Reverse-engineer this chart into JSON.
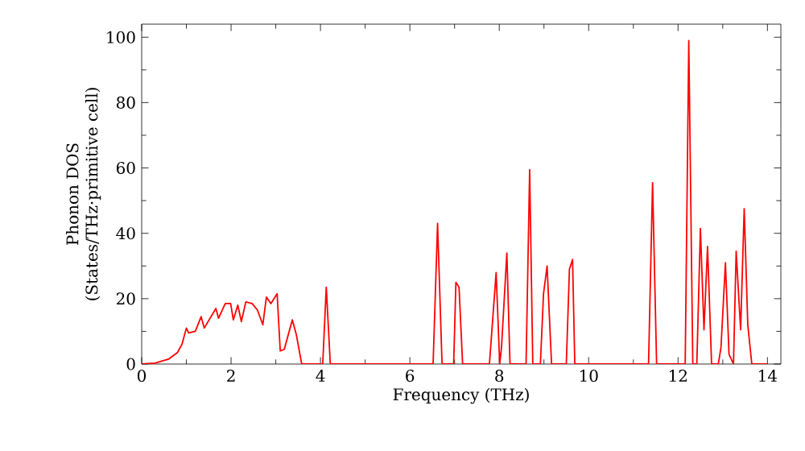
{
  "chart_data": {
    "type": "line",
    "xlabel": "Frequency (THz)",
    "ylabel": "Phonon DOS\n(States/THz·primitive cell)",
    "xlim": [
      0,
      14.3
    ],
    "ylim": [
      0,
      104
    ],
    "xticks": [
      0,
      2,
      4,
      6,
      8,
      10,
      12,
      14
    ],
    "yticks": [
      0,
      20,
      40,
      60,
      80,
      100
    ],
    "grid": false,
    "marker": "none",
    "line_style": "solid",
    "series": [
      {
        "color": "#ff0000",
        "x": [
          0,
          0.3,
          0.6,
          0.8,
          0.9,
          1.0,
          1.05,
          1.2,
          1.33,
          1.4,
          1.66,
          1.72,
          1.87,
          1.99,
          2.05,
          2.15,
          2.23,
          2.33,
          2.47,
          2.59,
          2.71,
          2.79,
          2.89,
          3.03,
          3.1,
          3.19,
          3.37,
          3.46,
          3.58,
          4.05,
          4.13,
          4.22,
          6.52,
          6.62,
          6.72,
          6.98,
          7.03,
          7.1,
          7.18,
          7.78,
          7.93,
          8.01,
          8.05,
          8.17,
          8.24,
          8.6,
          8.68,
          8.75,
          8.92,
          8.99,
          9.07,
          9.17,
          9.5,
          9.57,
          9.64,
          9.69,
          11.34,
          11.43,
          11.52,
          12.16,
          12.24,
          12.33,
          12.42,
          12.5,
          12.58,
          12.66,
          12.75,
          12.9,
          12.96,
          13.06,
          13.14,
          13.24,
          13.3,
          13.4,
          13.48,
          13.56,
          13.65,
          14.0
        ],
        "values": [
          0,
          0.3,
          1.5,
          3.5,
          6,
          11,
          9.5,
          10,
          14.5,
          11,
          17,
          14,
          18.5,
          18.5,
          13.5,
          18,
          13,
          19,
          18.5,
          16.5,
          12,
          20.5,
          18.5,
          21.5,
          4,
          4.5,
          13.5,
          9,
          0,
          0,
          23.5,
          0,
          0,
          43,
          0,
          0,
          25,
          23.5,
          0,
          0,
          28,
          0,
          5,
          34,
          0,
          0,
          59.5,
          0,
          0,
          21.5,
          30,
          0,
          0,
          29,
          32,
          0,
          0,
          55.5,
          0,
          0,
          99,
          0,
          0,
          41.5,
          10.5,
          36,
          0,
          0,
          5,
          31,
          3,
          0,
          34.5,
          10.5,
          47.5,
          12,
          0,
          0
        ]
      }
    ]
  }
}
